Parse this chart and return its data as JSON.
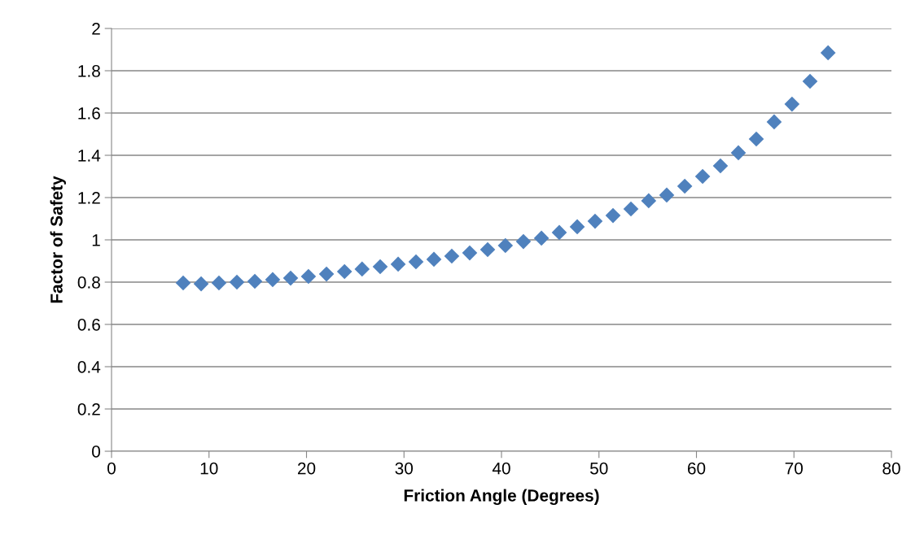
{
  "chart_data": {
    "type": "scatter",
    "xlabel": "Friction Angle (Degrees)",
    "ylabel": "Factor of Safety",
    "x": [
      7.35,
      9.19,
      11.02,
      12.86,
      14.7,
      16.53,
      18.37,
      20.2,
      22.05,
      23.9,
      25.7,
      27.56,
      29.4,
      31.23,
      33.07,
      34.9,
      36.74,
      38.58,
      40.4,
      42.25,
      44.1,
      45.93,
      47.77,
      49.6,
      51.44,
      53.28,
      55.1,
      56.95,
      58.8,
      60.63,
      62.46,
      64.3,
      66.14,
      67.97,
      69.8,
      71.65,
      73.5
    ],
    "series": [
      {
        "color": "#4f81bd",
        "values": [
          0.796,
          0.792,
          0.796,
          0.8,
          0.804,
          0.812,
          0.819,
          0.827,
          0.838,
          0.85,
          0.862,
          0.873,
          0.885,
          0.896,
          0.908,
          0.923,
          0.938,
          0.954,
          0.973,
          0.992,
          1.008,
          1.035,
          1.062,
          1.088,
          1.115,
          1.146,
          1.185,
          1.212,
          1.254,
          1.3,
          1.35,
          1.412,
          1.477,
          1.558,
          1.642,
          1.75,
          1.885
        ]
      }
    ],
    "xlim": [
      0,
      80
    ],
    "xticks": [
      0,
      10,
      20,
      30,
      40,
      50,
      60,
      70,
      80
    ],
    "ylim": [
      0,
      2
    ],
    "yticks": [
      0,
      {
        "value": 0.2,
        "label": "0.2"
      },
      {
        "value": 0.4,
        "label": "0.4"
      },
      {
        "value": 0.6,
        "label": "0.6"
      },
      {
        "value": 0.8,
        "label": "0.8"
      },
      1,
      {
        "value": 1.2,
        "label": "1.2"
      },
      {
        "value": 1.4,
        "label": "1.4"
      },
      {
        "value": 1.6,
        "label": "1.6"
      },
      {
        "value": 1.8,
        "label": "1.8"
      },
      2
    ],
    "grid": "y",
    "marker": "diamond",
    "legend": false
  }
}
